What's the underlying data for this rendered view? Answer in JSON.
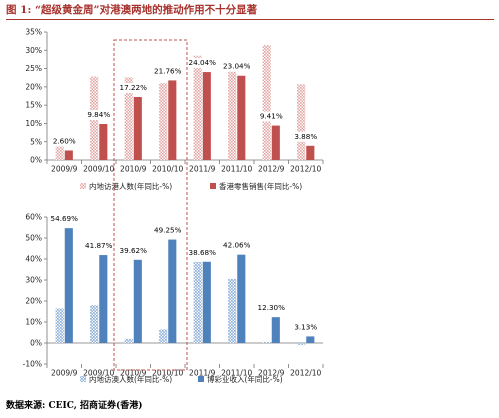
{
  "figure": {
    "title": "图 1: “超级黄金周”对港澳两地的推动作用不十分显著",
    "source": "数据来源: CEIC, 招商证券(香港)"
  },
  "colors": {
    "title_accent": "#a8322d",
    "hk_series": "#c0504d",
    "hk_mainland_pattern": "#e3a5a3",
    "macau_series": "#4f81bd",
    "macau_mainland_pattern": "#8fb0da",
    "highlight_box": "#c0504d"
  },
  "chart_data": [
    {
      "type": "bar",
      "categories": [
        "2009/9",
        "2009/10",
        "2010/9",
        "2010/10",
        "2011/9",
        "2011/10",
        "2012/9",
        "2012/10"
      ],
      "series": [
        {
          "name": "内地访港人数(年同比-%)",
          "values": [
            6.0,
            22.8,
            22.6,
            21.0,
            28.5,
            26.5,
            31.4,
            20.7
          ],
          "labels": [
            "",
            "",
            "",
            "",
            "",
            "",
            "",
            ""
          ]
        },
        {
          "name": "香港零售销售(年同比-%)",
          "values": [
            2.6,
            9.84,
            17.22,
            21.76,
            24.04,
            23.04,
            9.41,
            3.88
          ],
          "labels": [
            "2.60%",
            "9.84%",
            "17.22%",
            "21.76%",
            "24.04%",
            "23.04%",
            "9.41%",
            "3.88%"
          ]
        }
      ],
      "ylim": [
        0,
        35
      ],
      "yticks": [
        0,
        5,
        10,
        15,
        20,
        25,
        30,
        35
      ],
      "ytick_labels": [
        "0%",
        "5%",
        "10%",
        "15%",
        "20%",
        "25%",
        "30%",
        "35%"
      ],
      "legend_position": "bottom",
      "grid": false
    },
    {
      "type": "bar",
      "categories": [
        "2009/9",
        "2009/10",
        "2010/9",
        "2010/10",
        "2011/9",
        "2011/10",
        "2012/9",
        "2012/10"
      ],
      "series": [
        {
          "name": "内地访澳人数(年同比-%)",
          "values": [
            16.5,
            18.0,
            2.0,
            6.5,
            38.6,
            30.5,
            0.5,
            -1.0
          ],
          "labels": [
            "",
            "",
            "",
            "",
            "",
            "",
            "",
            ""
          ]
        },
        {
          "name": "博彩业收入(年同比-%)",
          "values": [
            54.69,
            41.87,
            39.62,
            49.25,
            38.68,
            42.06,
            12.3,
            3.13
          ],
          "labels": [
            "54.69%",
            "41.87%",
            "39.62%",
            "49.25%",
            "38.68%",
            "42.06%",
            "12.30%",
            "3.13%"
          ]
        }
      ],
      "ylim": [
        -10,
        60
      ],
      "yticks": [
        -10,
        0,
        10,
        20,
        30,
        40,
        50,
        60
      ],
      "ytick_labels": [
        "-10%",
        "0%",
        "10%",
        "20%",
        "30%",
        "40%",
        "50%",
        "60%"
      ],
      "legend_position": "bottom",
      "grid": false
    }
  ]
}
